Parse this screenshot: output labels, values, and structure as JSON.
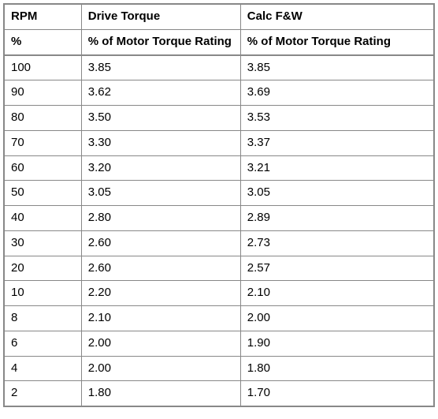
{
  "table": {
    "type": "table",
    "background_color": "#ffffff",
    "border_color": "#888888",
    "header_rows": [
      {
        "rpm": "RPM",
        "drive_torque": "Drive Torque",
        "calc_fw": "Calc F&W"
      },
      {
        "rpm": "%",
        "drive_torque": "% of Motor Torque Rating",
        "calc_fw": "% of Motor Torque Rating"
      }
    ],
    "columns": [
      "rpm",
      "drive_torque",
      "calc_fw"
    ],
    "column_widths_pct": [
      18,
      37,
      45
    ],
    "font_size_pt": 11,
    "header_font_weight": "bold",
    "rows": [
      {
        "rpm": "100",
        "drive_torque": "3.85",
        "calc_fw": "3.85"
      },
      {
        "rpm": "90",
        "drive_torque": "3.62",
        "calc_fw": "3.69"
      },
      {
        "rpm": "80",
        "drive_torque": "3.50",
        "calc_fw": "3.53"
      },
      {
        "rpm": "70",
        "drive_torque": "3.30",
        "calc_fw": "3.37"
      },
      {
        "rpm": "60",
        "drive_torque": "3.20",
        "calc_fw": "3.21"
      },
      {
        "rpm": "50",
        "drive_torque": "3.05",
        "calc_fw": "3.05"
      },
      {
        "rpm": "40",
        "drive_torque": "2.80",
        "calc_fw": "2.89"
      },
      {
        "rpm": "30",
        "drive_torque": "2.60",
        "calc_fw": "2.73"
      },
      {
        "rpm": "20",
        "drive_torque": "2.60",
        "calc_fw": "2.57"
      },
      {
        "rpm": "10",
        "drive_torque": "2.20",
        "calc_fw": "2.10"
      },
      {
        "rpm": "8",
        "drive_torque": "2.10",
        "calc_fw": "2.00"
      },
      {
        "rpm": "6",
        "drive_torque": "2.00",
        "calc_fw": "1.90"
      },
      {
        "rpm": "4",
        "drive_torque": "2.00",
        "calc_fw": "1.80"
      },
      {
        "rpm": "2",
        "drive_torque": "1.80",
        "calc_fw": "1.70"
      }
    ]
  }
}
